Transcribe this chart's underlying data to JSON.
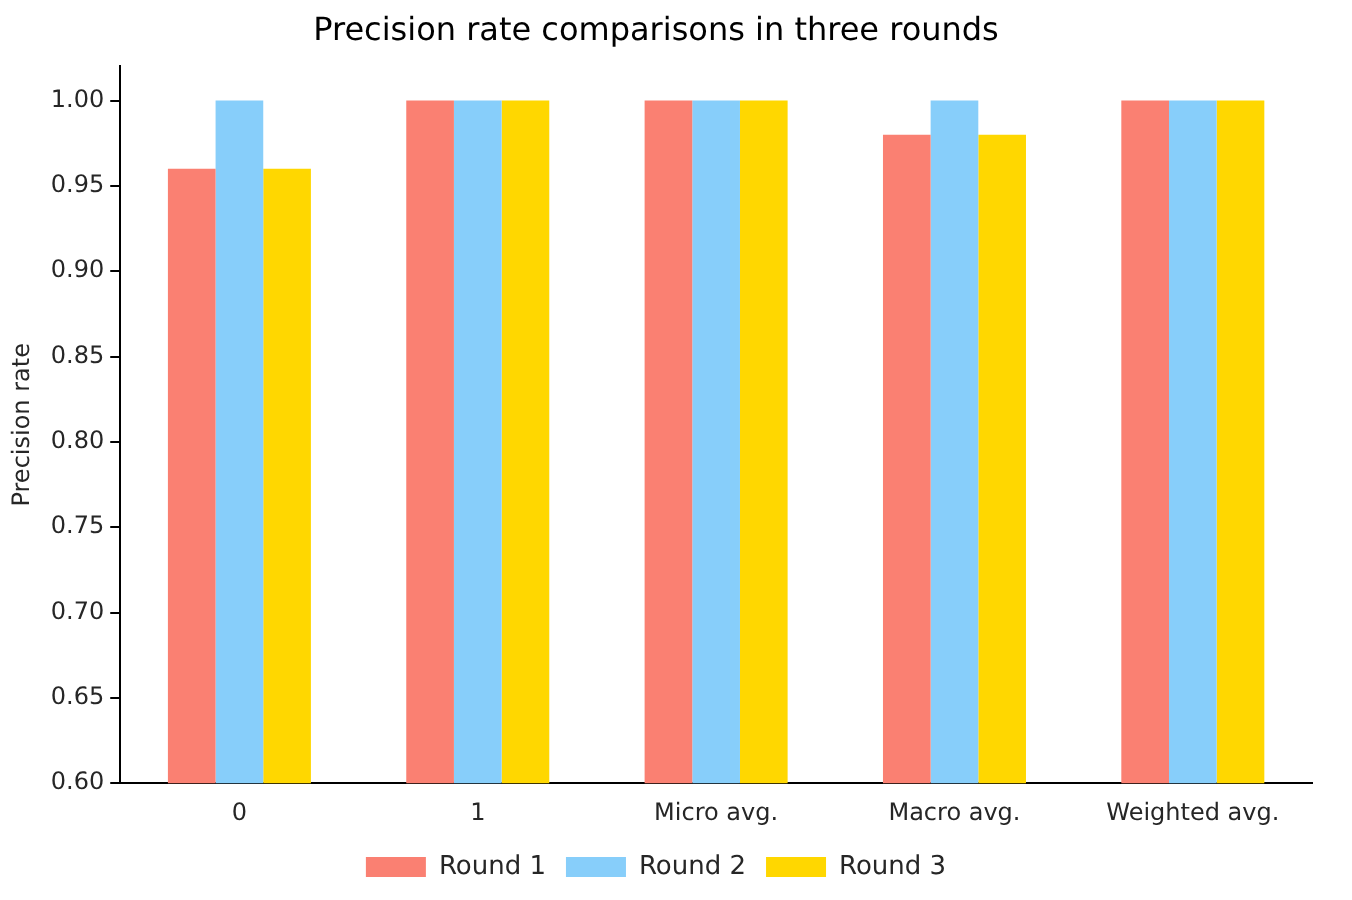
{
  "chart_data": {
    "type": "bar",
    "title": "Precision rate comparisons in three rounds",
    "ylabel": "Precision rate",
    "categories": [
      "0",
      "1",
      "Micro avg.",
      "Macro avg.",
      "Weighted avg."
    ],
    "series": [
      {
        "name": "Round 1",
        "color": "#fa8072",
        "values": [
          0.96,
          1.0,
          1.0,
          0.98,
          1.0
        ]
      },
      {
        "name": "Round 2",
        "color": "#87cefa",
        "values": [
          1.0,
          1.0,
          1.0,
          1.0,
          1.0
        ]
      },
      {
        "name": "Round 3",
        "color": "#ffd700",
        "values": [
          0.96,
          1.0,
          1.0,
          0.98,
          1.0
        ]
      }
    ],
    "ylim": [
      0.6,
      1.02
    ],
    "yticks": [
      {
        "value": 0.6,
        "label": "0.60"
      },
      {
        "value": 0.65,
        "label": "0.65"
      },
      {
        "value": 0.7,
        "label": "0.70"
      },
      {
        "value": 0.75,
        "label": "0.75"
      },
      {
        "value": 0.8,
        "label": "0.80"
      },
      {
        "value": 0.85,
        "label": "0.85"
      },
      {
        "value": 0.9,
        "label": "0.90"
      },
      {
        "value": 0.95,
        "label": "0.95"
      },
      {
        "value": 1.0,
        "label": "1.00"
      }
    ],
    "grid": false,
    "legend": "bottom"
  }
}
